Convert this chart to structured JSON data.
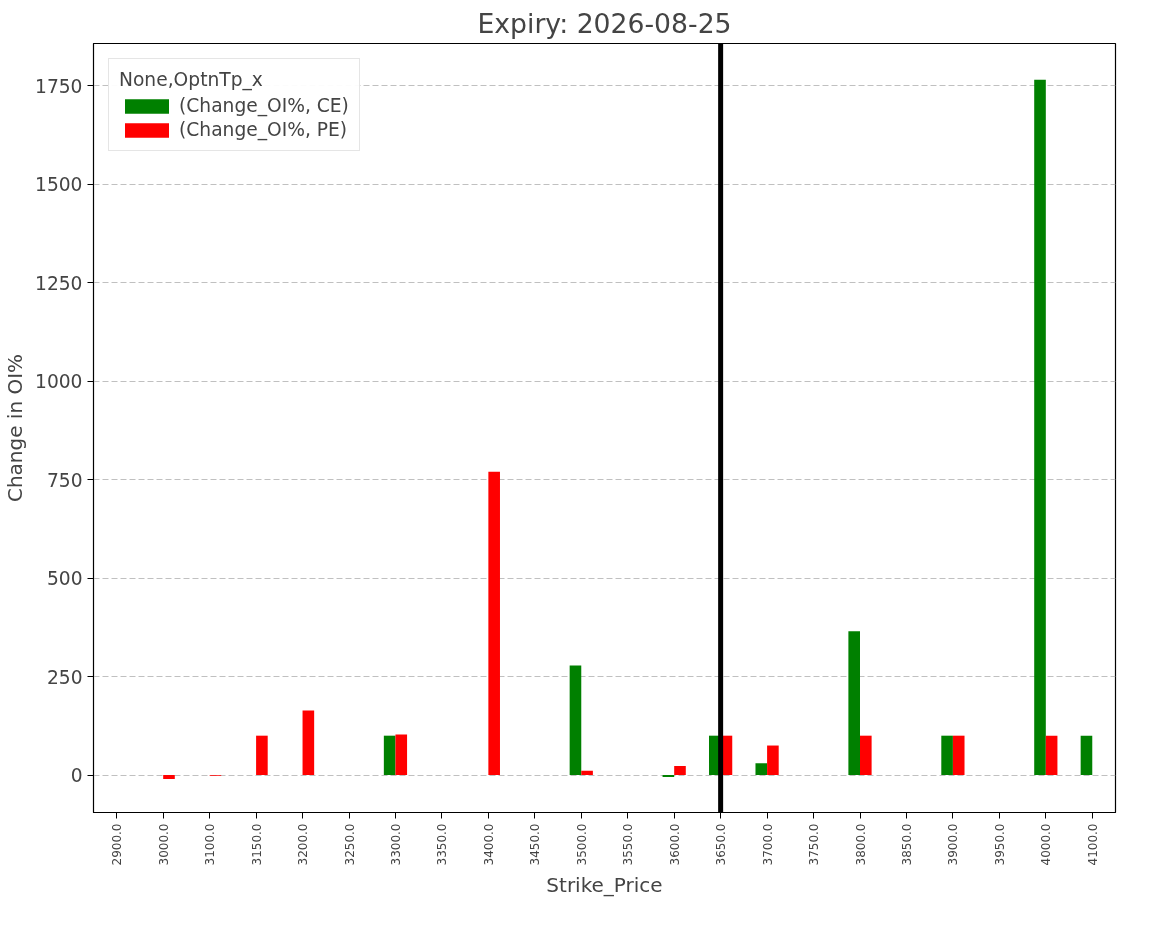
{
  "chart_data": {
    "type": "bar",
    "title": "Expiry: 2026-08-25",
    "xlabel": "Strike_Price",
    "ylabel": "Change in OI%",
    "legend_title": "None,OptnTp_x",
    "categories": [
      "2900.0",
      "3000.0",
      "3100.0",
      "3150.0",
      "3200.0",
      "3250.0",
      "3300.0",
      "3350.0",
      "3400.0",
      "3450.0",
      "3500.0",
      "3550.0",
      "3600.0",
      "3650.0",
      "3700.0",
      "3750.0",
      "3800.0",
      "3850.0",
      "3900.0",
      "3950.0",
      "4000.0",
      "4100.0"
    ],
    "series": [
      {
        "name": "(Change_OI%, CE)",
        "color": "#008000",
        "values": [
          0,
          0,
          0,
          0,
          0,
          0,
          100,
          0,
          0,
          0,
          278,
          0,
          -5,
          100,
          30,
          0,
          365,
          0,
          100,
          0,
          1765,
          100
        ]
      },
      {
        "name": "(Change_OI%, PE)",
        "color": "#ff0000",
        "values": [
          0,
          -10,
          -2,
          100,
          164,
          0,
          103,
          0,
          770,
          0,
          11,
          0,
          23,
          100,
          75,
          0,
          100,
          0,
          100,
          0,
          100,
          0
        ]
      }
    ],
    "ylim": [
      -95,
      1857
    ],
    "yticks": [
      0,
      250,
      500,
      750,
      1000,
      1250,
      1500,
      1750
    ],
    "ref_lines": [
      {
        "axis": "x",
        "value": "3650.0",
        "color": "#000000"
      }
    ],
    "grid": "y",
    "legend": "top left"
  }
}
